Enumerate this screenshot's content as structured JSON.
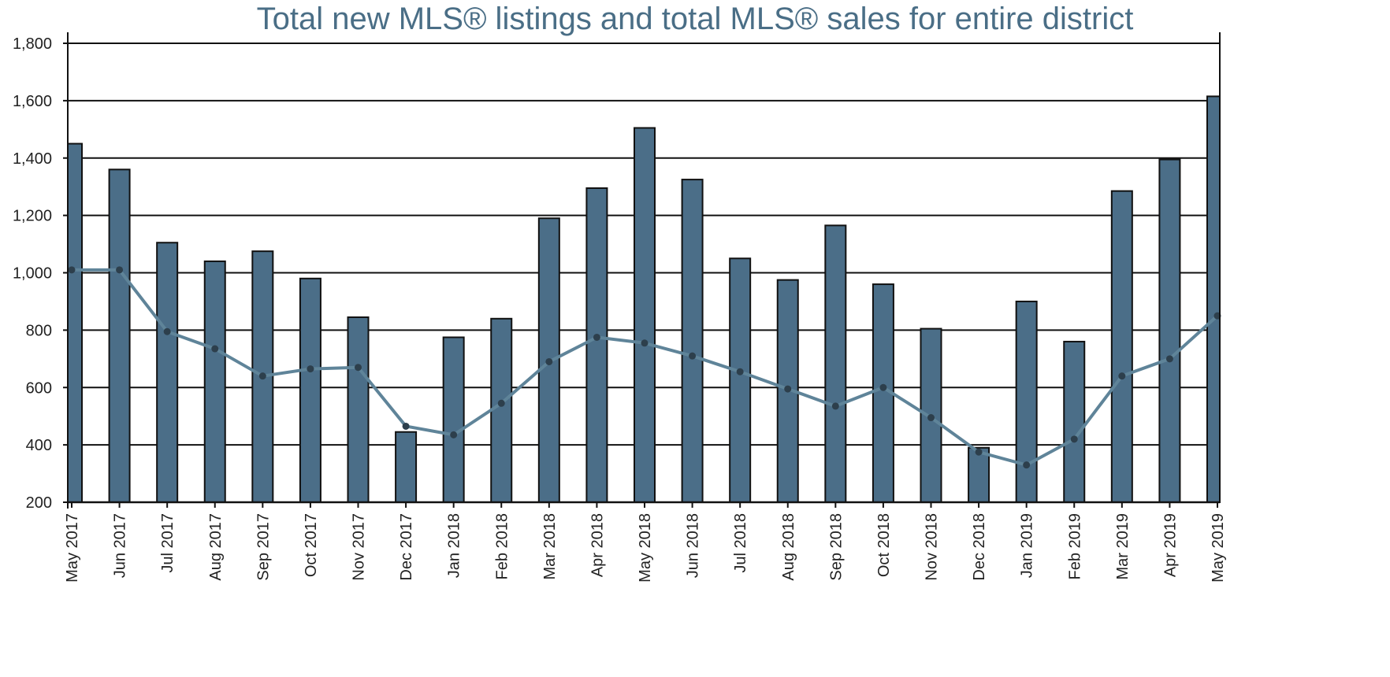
{
  "chart_data": {
    "type": "bar",
    "title": "Total new MLS® listings and total MLS® sales for entire district",
    "xlabel": "",
    "ylabel": "",
    "ylim": [
      200,
      1800
    ],
    "yticks": [
      200,
      400,
      600,
      800,
      1000,
      1200,
      1400,
      1600,
      1800
    ],
    "ytick_labels": [
      "200",
      "400",
      "600",
      "800",
      "1,000",
      "1,200",
      "1,400",
      "1,600",
      "1,800"
    ],
    "grid": true,
    "legend": "none",
    "categories": [
      "May 2017",
      "Jun 2017",
      "Jul 2017",
      "Aug 2017",
      "Sep 2017",
      "Oct 2017",
      "Nov 2017",
      "Dec 2017",
      "Jan 2018",
      "Feb 2018",
      "Mar 2018",
      "Apr 2018",
      "May 2018",
      "Jun 2018",
      "Jul 2018",
      "Aug 2018",
      "Sep 2018",
      "Oct 2018",
      "Nov 2018",
      "Dec 2018",
      "Jan 2019",
      "Feb 2019",
      "Mar 2019",
      "Apr 2019",
      "May 2019"
    ],
    "series": [
      {
        "name": "Total new MLS® listings",
        "kind": "bar",
        "color": "#4b6e88",
        "values": [
          1450,
          1360,
          1105,
          1040,
          1075,
          980,
          845,
          445,
          775,
          840,
          1190,
          1295,
          1505,
          1325,
          1050,
          975,
          1165,
          960,
          805,
          390,
          900,
          760,
          1285,
          1395,
          1615
        ]
      },
      {
        "name": "Total MLS® sales",
        "kind": "line",
        "color": "#5f8499",
        "values": [
          1010,
          1010,
          795,
          735,
          640,
          665,
          670,
          465,
          435,
          545,
          690,
          775,
          755,
          710,
          655,
          595,
          535,
          600,
          495,
          375,
          330,
          420,
          640,
          700,
          850
        ]
      }
    ]
  }
}
